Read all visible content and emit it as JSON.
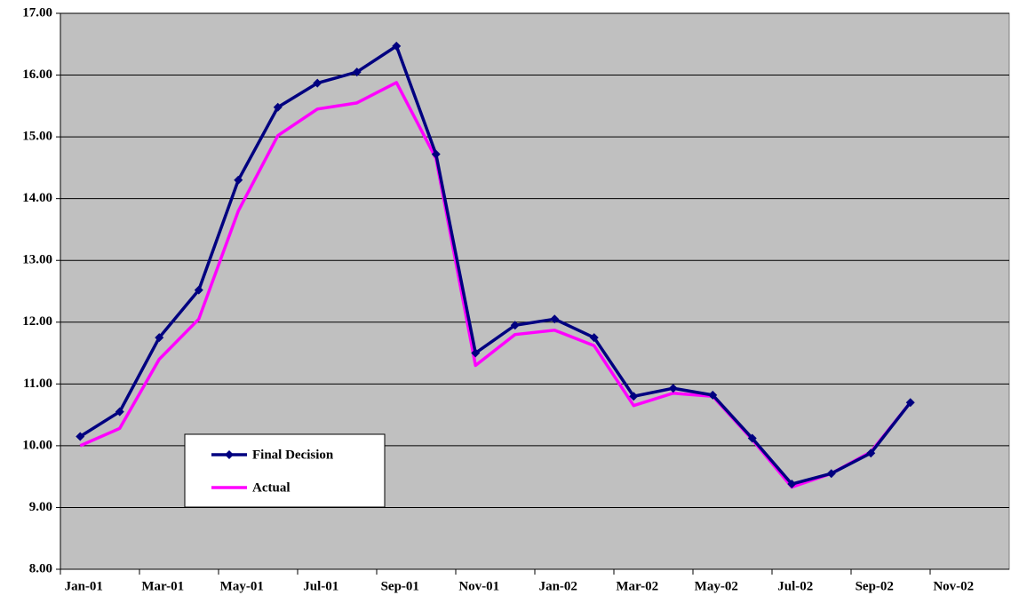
{
  "chart_data": {
    "type": "line",
    "categories": [
      "Jan-01",
      null,
      "Mar-01",
      null,
      "May-01",
      null,
      "Jul-01",
      null,
      "Sep-01",
      null,
      "Nov-01",
      null,
      "Jan-02",
      null,
      "Mar-02",
      null,
      "May-02",
      null,
      "Jul-02",
      null,
      "Sep-02",
      null,
      "Nov-02",
      null
    ],
    "series": [
      {
        "name": "Final Decision",
        "color": "#000080",
        "marker": "diamond",
        "values": [
          10.15,
          10.55,
          11.75,
          12.52,
          14.3,
          15.48,
          15.87,
          16.05,
          16.47,
          14.72,
          11.5,
          11.95,
          12.05,
          11.75,
          10.8,
          10.93,
          10.82,
          10.12,
          9.38,
          9.55,
          9.88,
          10.7,
          null,
          null
        ]
      },
      {
        "name": "Actual",
        "color": "#ff00ff",
        "values": [
          10.0,
          10.28,
          11.4,
          12.05,
          13.8,
          15.02,
          15.45,
          15.55,
          15.88,
          14.65,
          11.3,
          11.8,
          11.87,
          11.62,
          10.65,
          10.85,
          10.8,
          10.1,
          9.33,
          9.55,
          9.9,
          10.7,
          null,
          null
        ]
      }
    ],
    "ylim": [
      8,
      17
    ],
    "yticks": [
      {
        "value": 8,
        "label": "8.00"
      },
      {
        "value": 9,
        "label": "9.00"
      },
      {
        "value": 10,
        "label": "10.00"
      },
      {
        "value": 11,
        "label": "11.00"
      },
      {
        "value": 12,
        "label": "12.00"
      },
      {
        "value": 13,
        "label": "13.00"
      },
      {
        "value": 14,
        "label": "14.00"
      },
      {
        "value": 15,
        "label": "15.00"
      },
      {
        "value": 16,
        "label": "16.00"
      },
      {
        "value": 17,
        "label": "17.00"
      }
    ],
    "grid": true,
    "legend": "lower left"
  }
}
